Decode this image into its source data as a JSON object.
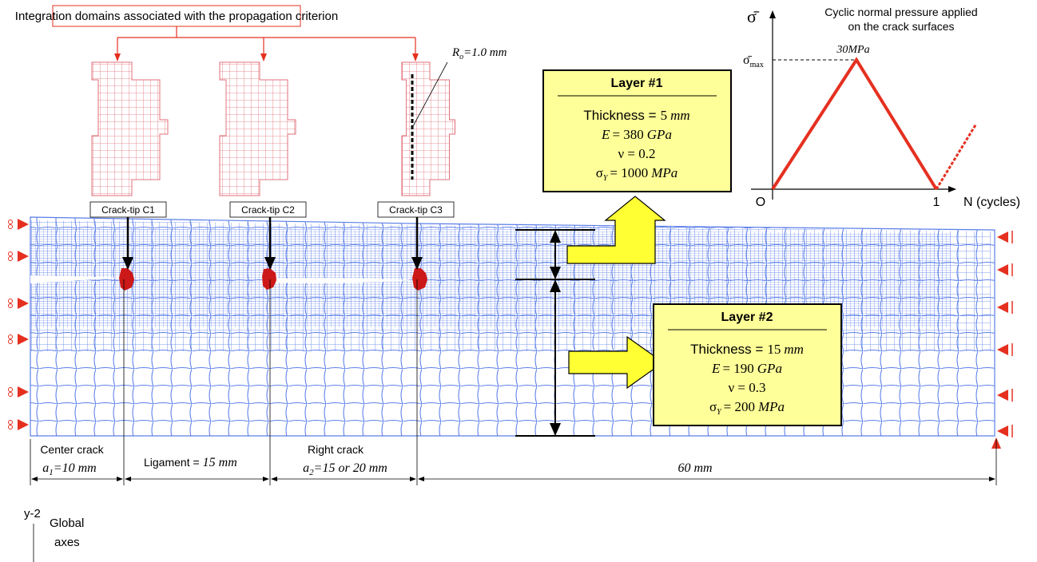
{
  "header": {
    "title": "Integration domains associated with the propagation criterion"
  },
  "radius_label": {
    "symbol": "R",
    "subscript": "o",
    "text": "=1.0 mm"
  },
  "crack_tips": [
    "Crack-tip C1",
    "Crack-tip C2",
    "Crack-tip C3"
  ],
  "layers": [
    {
      "title": "Layer #1",
      "thickness": [
        "Thickness =",
        "5",
        "mm"
      ],
      "modulus": [
        "E",
        "= 380",
        "GPa"
      ],
      "poisson": "ν = 0.2",
      "yield": [
        "σ",
        "Y",
        "= 1000",
        "MPa"
      ]
    },
    {
      "title": "Layer #2",
      "thickness": [
        "Thickness =",
        "15",
        "mm"
      ],
      "modulus": [
        "E",
        "= 190",
        "GPa"
      ],
      "poisson": "ν = 0.3",
      "yield": [
        "σ",
        "Y",
        "= 200",
        "MPa"
      ]
    }
  ],
  "load_graph": {
    "y_symbol": "σ̄",
    "title": [
      "Cyclic normal pressure applied",
      "on the crack surfaces"
    ],
    "max_symbol": "σ̄",
    "max_subscript": "max",
    "peak_label": "30MPa",
    "origin": "O",
    "x_tick": "1",
    "x_label": "N (cycles)"
  },
  "dimensions": {
    "center": {
      "caption": "Center crack",
      "symbol": "a",
      "subscript": "1",
      "value": "=10 mm"
    },
    "ligament": {
      "caption": "Ligament =",
      "value": "15 mm"
    },
    "right": {
      "caption": "Right crack",
      "symbol": "a",
      "subscript": "2",
      "value": "=15 or 20 mm"
    },
    "remaining": {
      "value": "60 mm"
    }
  },
  "axes": {
    "label": "y-2",
    "caption": [
      "Global",
      "axes"
    ]
  }
}
